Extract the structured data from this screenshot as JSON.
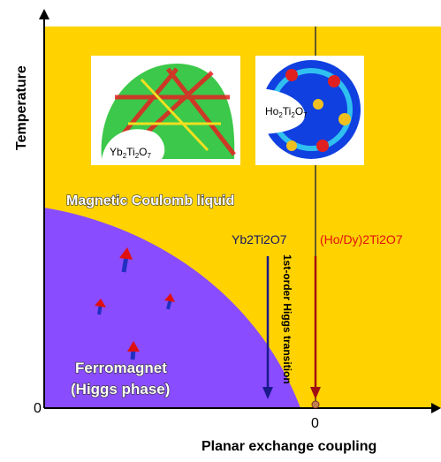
{
  "axes": {
    "y_label": "Temperature",
    "x_label": "Planar exchange coupling",
    "y_origin": "0",
    "x_origin": "0"
  },
  "insets": [
    {
      "label": "Yb2Ti2O7"
    },
    {
      "label": "Ho2Ti2O7"
    }
  ],
  "regions": {
    "liquid": "Magnetic Coulomb liquid",
    "ferro_line1": "Ferromagnet",
    "ferro_line2": "(Higgs phase)",
    "transition": "1st-order Higgs transition"
  },
  "materials": {
    "yb": "Yb2Ti2O7",
    "hody": "(Ho/Dy)2Ti2O7"
  }
}
